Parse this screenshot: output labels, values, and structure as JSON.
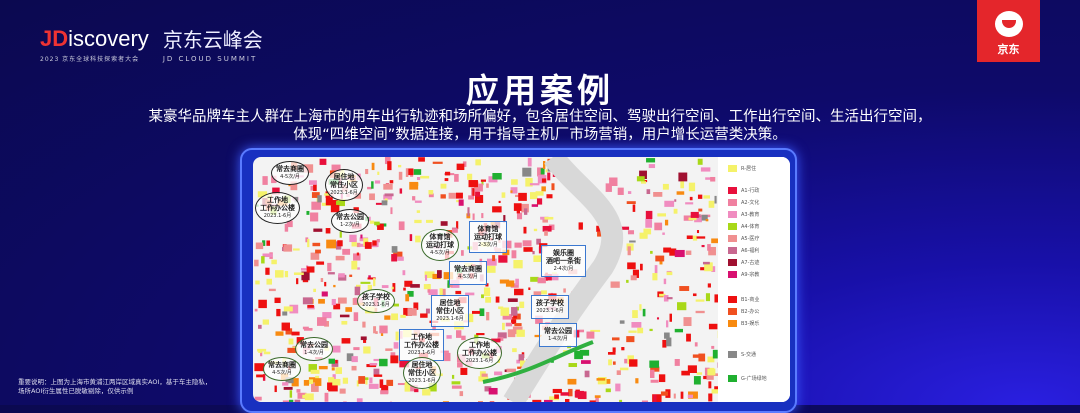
{
  "header": {
    "brand_prefix": "JD",
    "brand_rest": "iscovery",
    "brand_sub": "2023 京东全球科技探索者大会",
    "event_cn": "京东云峰会",
    "event_en": "JD CLOUD SUMMIT",
    "jd_logo_text": "京东"
  },
  "title": "应用案例",
  "description": [
    "某豪华品牌车主人群在上海市的用车出行轨迹和场所偏好，包含居住空间、驾驶出行空间、工作出行空间、生活出行空间，",
    "体现“四维空间”数据连接，用于指导主机厂市场营销，用户增长运营类决策。"
  ],
  "legend": [
    {
      "label": "R-居住",
      "color": "#f5f26a"
    },
    {
      "label": "A1-行政",
      "color": "#e8103c"
    },
    {
      "label": "A2-文化",
      "color": "#f080a0"
    },
    {
      "label": "A3-教育",
      "color": "#f08cc0"
    },
    {
      "label": "A4-体育",
      "color": "#a8d818"
    },
    {
      "label": "A5-医疗",
      "color": "#f09090"
    },
    {
      "label": "A6-福利",
      "color": "#c86890"
    },
    {
      "label": "A7-古迹",
      "color": "#a01030"
    },
    {
      "label": "A9-宗教",
      "color": "#d81070"
    },
    {
      "label": "B1-商业",
      "color": "#ee1010"
    },
    {
      "label": "B2-办公",
      "color": "#f05020"
    },
    {
      "label": "B3-娱乐",
      "color": "#f88a10"
    },
    {
      "label": "S-交通",
      "color": "#888888"
    },
    {
      "label": "G-广场绿地",
      "color": "#20b030"
    }
  ],
  "callouts": [
    {
      "title": "常去商圈",
      "sub": "4-5次/月"
    },
    {
      "title": "居住地\n常住小区",
      "sub": "2023.1-6月"
    },
    {
      "title": "工作地\n工作办公楼",
      "sub": "2023.1-6月"
    },
    {
      "title": "常去公园",
      "sub": "1-2次/月"
    },
    {
      "title": "体育馆\n运动打球",
      "sub": "4-5次/月"
    },
    {
      "title": "体育馆\n运动打球",
      "sub": "2-3次/月"
    },
    {
      "title": "常去商圈",
      "sub": "4-5次/月"
    },
    {
      "title": "娱乐圈\n酒吧一条街",
      "sub": "2-4次/月"
    },
    {
      "title": "孩子学校",
      "sub": "2023.1-6月"
    },
    {
      "title": "居住地\n常住小区",
      "sub": "2023.1-6月"
    },
    {
      "title": "孩子学校",
      "sub": "2023.1-6月"
    },
    {
      "title": "常去公园",
      "sub": "1-4次/月"
    },
    {
      "title": "工作地\n工作办公楼",
      "sub": "2023.1-6月"
    },
    {
      "title": "工作地\n工作办公楼",
      "sub": "2023.1-6月"
    },
    {
      "title": "常去公园",
      "sub": "1-4次/月"
    },
    {
      "title": "常去商圈",
      "sub": "4-5次/月"
    },
    {
      "title": "居住地\n常住小区",
      "sub": "2023.1-6月"
    }
  ],
  "note": [
    "重要说明：上图为上海市黄浦江两岸区域真实AOI，基于车主隐私，",
    "场所AOI衍生属性已脱敏剔除，仅供示例"
  ]
}
